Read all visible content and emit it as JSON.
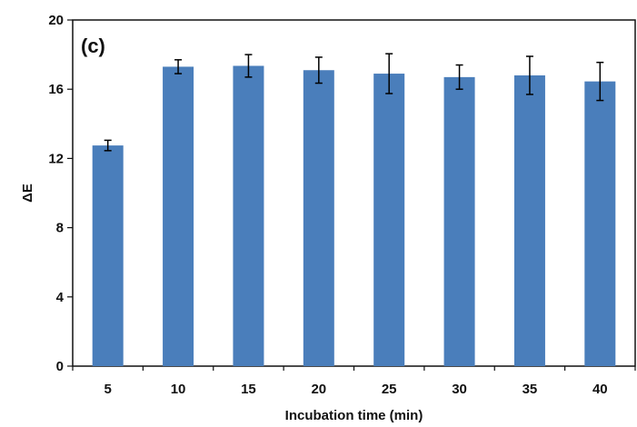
{
  "chart_data": {
    "type": "bar",
    "panel_label": "(c)",
    "xlabel": "Incubation time (min)",
    "ylabel": "ΔE",
    "categories": [
      "5",
      "10",
      "15",
      "20",
      "25",
      "30",
      "35",
      "40"
    ],
    "values": [
      12.75,
      17.3,
      17.35,
      17.1,
      16.9,
      16.7,
      16.8,
      16.45
    ],
    "error": [
      0.3,
      0.4,
      0.65,
      0.75,
      1.15,
      0.7,
      1.1,
      1.1
    ],
    "ylim": [
      0,
      20
    ],
    "yticks": [
      0,
      4,
      8,
      12,
      16,
      20
    ],
    "grid": false,
    "legend": "none",
    "bar_color": "#4a7ebb",
    "error_bar_color": "#000000"
  }
}
